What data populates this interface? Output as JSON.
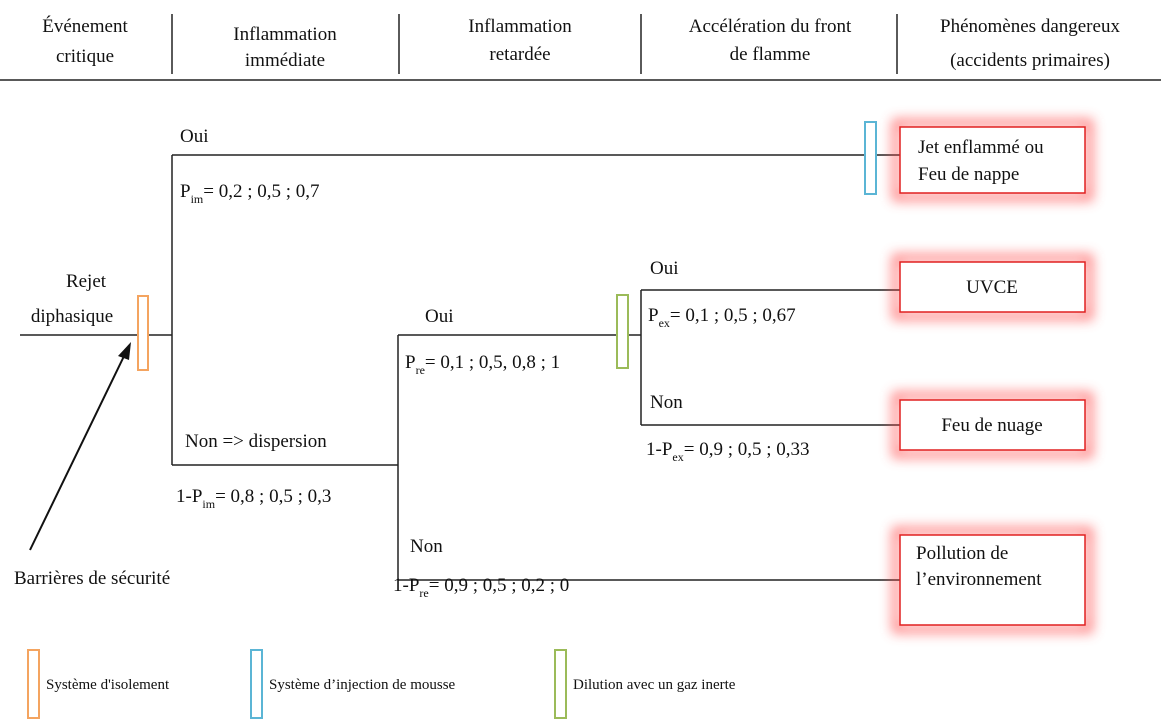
{
  "header": [
    [
      "Événement",
      "critique"
    ],
    [
      "Inflammation",
      "immédiate"
    ],
    [
      "Inflammation",
      "retardée"
    ],
    [
      "Accélération du front",
      "de flamme"
    ],
    [
      "Phénomènes dangereux",
      "(accidents primaires)"
    ]
  ],
  "initiator": [
    "Rejet",
    "diphasique"
  ],
  "branches": {
    "immediate_yes": {
      "label": "Oui",
      "prob": {
        "prefix": "P",
        "sub": "im",
        "text": "= 0,2 ; 0,5 ; 0,7"
      }
    },
    "immediate_no": {
      "label": "Non => dispersion",
      "prob": {
        "prefix": "1-P",
        "sub": "im",
        "text": "= 0,8 ; 0,5 ; 0,3"
      }
    },
    "delayed_yes": {
      "label": "Oui",
      "prob": {
        "prefix": "P",
        "sub": "re",
        "text": "= 0,1 ; 0,5, 0,8 ; 1"
      }
    },
    "delayed_no": {
      "label": "Non",
      "prob": {
        "prefix": "1-P",
        "sub": "re",
        "text": "= 0,9 ; 0,5 ; 0,2 ; 0"
      }
    },
    "accel_yes": {
      "label": "Oui",
      "prob": {
        "prefix": "P",
        "sub": "ex",
        "text": "= 0,1 ; 0,5 ; 0,67"
      }
    },
    "accel_no": {
      "label": "Non",
      "prob": {
        "prefix": "1-P",
        "sub": "ex",
        "text": "= 0,9 ; 0,5 ; 0,33"
      }
    }
  },
  "outcomes": [
    [
      "Jet enflammé ou",
      "Feu de nappe"
    ],
    [
      "UVCE"
    ],
    [
      "Feu de nuage"
    ],
    [
      "Pollution de",
      "l’environnement"
    ]
  ],
  "annotation": "Barrières de sécurité",
  "legend": [
    {
      "label": "Système d'isolement",
      "color": "#f4a460"
    },
    {
      "label": "Système d’injection de mousse",
      "color": "#5bb5d5"
    },
    {
      "label": "Dilution avec un gaz inerte",
      "color": "#9bbb59"
    }
  ]
}
